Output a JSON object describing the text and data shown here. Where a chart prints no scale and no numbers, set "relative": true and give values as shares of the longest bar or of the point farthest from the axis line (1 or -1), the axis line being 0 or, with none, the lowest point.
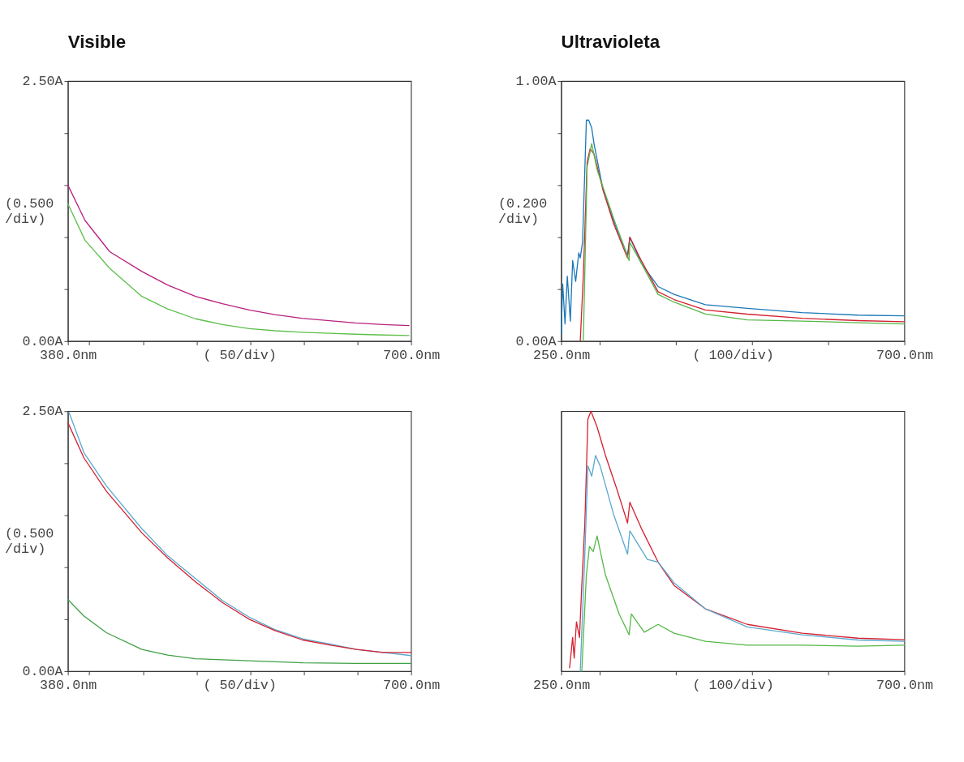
{
  "chart_data": [
    {
      "type": "line",
      "title": "Visible",
      "xlabel": "( 50/div)",
      "ylabel": "(0.500 /div)",
      "xlim": [
        380,
        700
      ],
      "ylim": [
        0,
        2.5
      ],
      "xticks": [
        {
          "value": 380,
          "label": "380.0nm"
        },
        {
          "value": 400,
          "label": null
        },
        {
          "value": 450,
          "label": null
        },
        {
          "value": 500,
          "label": null
        },
        {
          "value": 550,
          "label": null
        },
        {
          "value": 600,
          "label": null
        },
        {
          "value": 650,
          "label": null
        },
        {
          "value": 700,
          "label": "700.0nm"
        }
      ],
      "yticks": [
        {
          "value": 0,
          "label": "0.00A"
        },
        {
          "value": 0.5,
          "label": null
        },
        {
          "value": 1,
          "label": null
        },
        {
          "value": 1.5,
          "label": null
        },
        {
          "value": 2,
          "label": null
        },
        {
          "value": 2.5,
          "label": "2.50A"
        }
      ],
      "series": [
        {
          "color": "#b8207e",
          "x": [
            380,
            396,
            419,
            449,
            473,
            499,
            524,
            549,
            573,
            598,
            624,
            648,
            674,
            698
          ],
          "values": [
            1.5,
            1.16,
            0.86,
            0.67,
            0.54,
            0.43,
            0.36,
            0.3,
            0.255,
            0.22,
            0.196,
            0.175,
            0.16,
            0.15
          ]
        },
        {
          "color": "#5cbf4a",
          "x": [
            380,
            396,
            419,
            449,
            473,
            499,
            524,
            549,
            573,
            598,
            624,
            648,
            674,
            698
          ],
          "values": [
            1.32,
            0.97,
            0.7,
            0.43,
            0.31,
            0.215,
            0.16,
            0.12,
            0.1,
            0.086,
            0.075,
            0.067,
            0.059,
            0.054
          ]
        }
      ]
    },
    {
      "type": "line",
      "title": "Ultravioleta",
      "xlabel": "( 100/div)",
      "ylabel": "(0.200 /div)",
      "xlim": [
        250,
        700
      ],
      "ylim": [
        0,
        1
      ],
      "xticks": [
        {
          "value": 250,
          "label": "250.0nm"
        },
        {
          "value": 300,
          "label": null
        },
        {
          "value": 400,
          "label": null
        },
        {
          "value": 500,
          "label": null
        },
        {
          "value": 600,
          "label": null
        },
        {
          "value": 700,
          "label": "700.0nm"
        }
      ],
      "yticks": [
        {
          "value": 0,
          "label": "0.00A"
        },
        {
          "value": 0.2,
          "label": null
        },
        {
          "value": 0.4,
          "label": null
        },
        {
          "value": 0.6,
          "label": null
        },
        {
          "value": 0.8,
          "label": null
        },
        {
          "value": 1,
          "label": "1.00A"
        }
      ],
      "series": [
        {
          "color": "#1a78b8",
          "x": [
            250,
            252,
            255,
            258,
            262,
            265,
            269,
            273,
            275,
            278,
            283,
            286,
            290,
            293,
            305,
            319,
            337,
            340,
            355,
            377,
            398,
            439,
            494,
            566,
            639,
            700
          ],
          "values": [
            0.03,
            0.22,
            0.066,
            0.25,
            0.077,
            0.31,
            0.23,
            0.34,
            0.32,
            0.38,
            0.85,
            0.85,
            0.82,
            0.76,
            0.58,
            0.46,
            0.33,
            0.4,
            0.3,
            0.21,
            0.18,
            0.14,
            0.126,
            0.11,
            0.1,
            0.097
          ]
        },
        {
          "color": "#d42030",
          "x": [
            275,
            279,
            284,
            288,
            293,
            305,
            319,
            337,
            340,
            355,
            377,
            398,
            439,
            494,
            566,
            639,
            700
          ],
          "values": [
            0,
            0.25,
            0.69,
            0.74,
            0.72,
            0.58,
            0.45,
            0.32,
            0.4,
            0.31,
            0.19,
            0.16,
            0.12,
            0.104,
            0.088,
            0.079,
            0.075
          ]
        },
        {
          "color": "#55b848",
          "x": [
            279,
            284,
            290,
            297,
            319,
            339,
            340,
            355,
            377,
            398,
            439,
            494,
            566,
            639,
            700
          ],
          "values": [
            0,
            0.67,
            0.76,
            0.66,
            0.47,
            0.31,
            0.38,
            0.3,
            0.18,
            0.15,
            0.104,
            0.082,
            0.077,
            0.071,
            0.066
          ]
        }
      ]
    },
    {
      "type": "line",
      "xlabel": "( 50/div)",
      "ylabel": "(0.500 /div)",
      "xlim": [
        380,
        700
      ],
      "ylim": [
        0,
        2.5
      ],
      "xticks": [
        {
          "value": 380,
          "label": "380.0nm"
        },
        {
          "value": 400,
          "label": null
        },
        {
          "value": 450,
          "label": null
        },
        {
          "value": 500,
          "label": null
        },
        {
          "value": 550,
          "label": null
        },
        {
          "value": 600,
          "label": null
        },
        {
          "value": 650,
          "label": null
        },
        {
          "value": 700,
          "label": "700.0nm"
        }
      ],
      "yticks": [
        {
          "value": 0,
          "label": "0.00A"
        },
        {
          "value": 0.5,
          "label": null
        },
        {
          "value": 1,
          "label": null
        },
        {
          "value": 1.5,
          "label": null
        },
        {
          "value": 2,
          "label": null
        },
        {
          "value": 2.5,
          "label": "2.50A"
        }
      ],
      "series": [
        {
          "color": "#5aa8d0",
          "x": [
            381,
            395,
            416,
            449,
            473,
            499,
            524,
            549,
            573,
            599,
            625,
            649,
            674,
            700
          ],
          "values": [
            2.49,
            2.1,
            1.78,
            1.37,
            1.11,
            0.89,
            0.68,
            0.52,
            0.4,
            0.31,
            0.26,
            0.21,
            0.18,
            0.15
          ]
        },
        {
          "color": "#d42030",
          "x": [
            380,
            395,
            416,
            449,
            473,
            499,
            524,
            549,
            573,
            599,
            625,
            649,
            674,
            700
          ],
          "values": [
            2.39,
            2.05,
            1.73,
            1.33,
            1.09,
            0.86,
            0.66,
            0.5,
            0.39,
            0.3,
            0.25,
            0.21,
            0.18,
            0.18
          ]
        },
        {
          "color": "#3fa046",
          "x": [
            380,
            395,
            416,
            449,
            473,
            499,
            549,
            599,
            649,
            700
          ],
          "values": [
            0.69,
            0.53,
            0.37,
            0.21,
            0.155,
            0.12,
            0.1,
            0.08,
            0.075,
            0.075
          ]
        }
      ]
    },
    {
      "type": "line",
      "relative": true,
      "tick_labels": "x",
      "xlabel": "( 100/div)",
      "xlim": [
        250,
        700
      ],
      "xticks": [
        {
          "value": 250,
          "label": "250.0nm"
        },
        {
          "value": 300,
          "label": null
        },
        {
          "value": 400,
          "label": null
        },
        {
          "value": 500,
          "label": null
        },
        {
          "value": 600,
          "label": null
        },
        {
          "value": 700,
          "label": "700.0nm"
        }
      ],
      "series": [
        {
          "color": "#d42030",
          "x": [
            261,
            265,
            267,
            270,
            274,
            277,
            281,
            285,
            289,
            297,
            308,
            323,
            337,
            340,
            355,
            377,
            398,
            439,
            494,
            566,
            639,
            700
          ],
          "values": [
            0.013,
            0.13,
            0.05,
            0.19,
            0.13,
            0.33,
            0.57,
            0.97,
            1,
            0.94,
            0.83,
            0.7,
            0.57,
            0.65,
            0.55,
            0.42,
            0.33,
            0.24,
            0.18,
            0.146,
            0.127,
            0.121
          ]
        },
        {
          "color": "#5aa8d0",
          "x": [
            275,
            281,
            285,
            290,
            295,
            301,
            319,
            337,
            340,
            363,
            377,
            398,
            439,
            494,
            566,
            639,
            700
          ],
          "values": [
            0,
            0.45,
            0.79,
            0.75,
            0.83,
            0.79,
            0.6,
            0.45,
            0.54,
            0.43,
            0.42,
            0.34,
            0.24,
            0.17,
            0.14,
            0.12,
            0.115
          ]
        },
        {
          "color": "#55b848",
          "x": [
            277,
            283,
            287,
            292,
            297,
            308,
            326,
            339,
            342,
            359,
            377,
            398,
            439,
            494,
            566,
            639,
            700
          ],
          "values": [
            0,
            0.37,
            0.48,
            0.46,
            0.52,
            0.37,
            0.22,
            0.14,
            0.22,
            0.15,
            0.18,
            0.146,
            0.115,
            0.1,
            0.1,
            0.096,
            0.1
          ]
        }
      ]
    }
  ]
}
